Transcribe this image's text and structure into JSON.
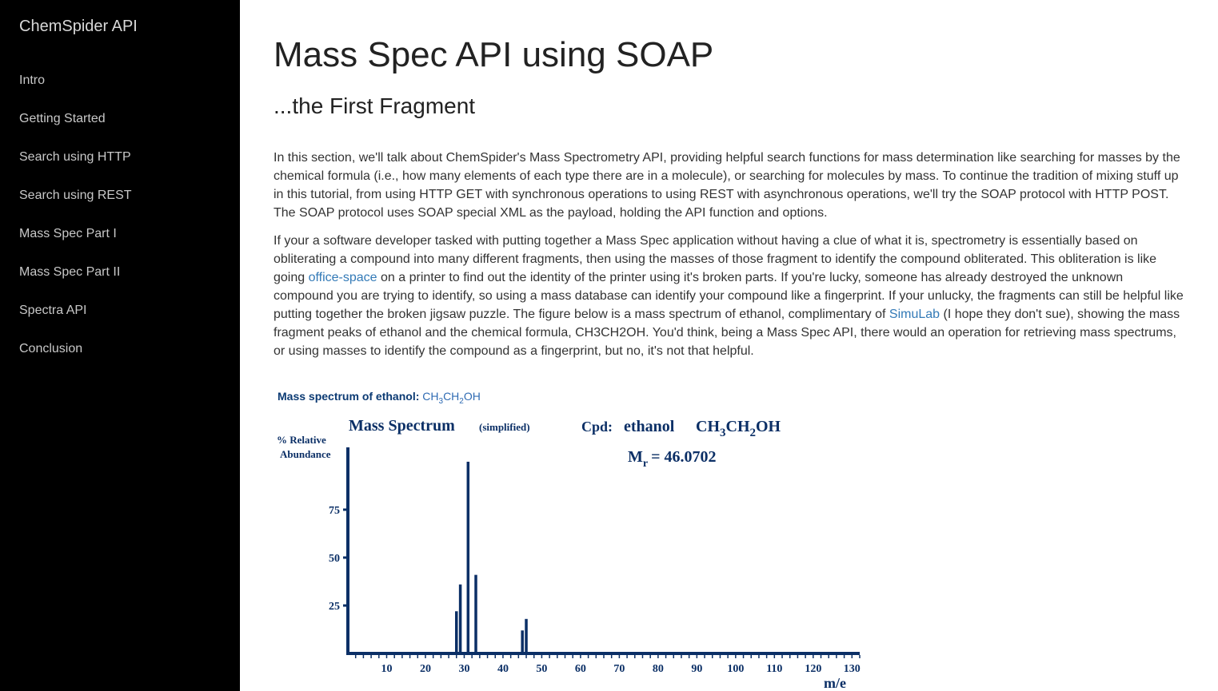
{
  "sidebar": {
    "brand": "ChemSpider API",
    "items": [
      {
        "label": "Intro"
      },
      {
        "label": "Getting Started"
      },
      {
        "label": "Search using HTTP"
      },
      {
        "label": "Search using REST"
      },
      {
        "label": "Mass Spec Part I"
      },
      {
        "label": "Mass Spec Part II"
      },
      {
        "label": "Spectra API"
      },
      {
        "label": "Conclusion"
      }
    ]
  },
  "main": {
    "title": "Mass Spec API using SOAP",
    "subtitle": "...the First Fragment",
    "paragraph1": "In this section, we'll talk about ChemSpider's Mass Spectrometry API, providing helpful search functions for mass determination like searching for masses by the chemical formula (i.e., how many elements of each type there are in a molecule), or searching for molecules by mass. To continue the tradition of mixing stuff up in this tutorial, from using HTTP GET with synchronous operations to using REST with asynchronous operations, we'll try the SOAP protocol with HTTP POST. The SOAP protocol uses SOAP special XML as the payload, holding the API function and options.",
    "paragraph2": {
      "part1": "If your a software developer tasked with putting together a Mass Spec application without having a clue of what it is, spectrometry is essentially based on obliterating a compound into many different fragments, then using the masses of those fragment to identify the compound obliterated. This obliteration is like going ",
      "link1": "office-space",
      "part2": " on a printer to find out the identity of the printer using it's broken parts. If you're lucky, someone has already destroyed the unknown compound you are trying to identify, so using a mass database can identify your compound like a fingerprint. If your unlucky, the fragments can still be helpful like putting together the broken jigsaw puzzle. The figure below is a mass spectrum of ethanol, complimentary of ",
      "link2": "SimuLab",
      "part3": " (I hope they don't sue), showing the mass fragment peaks of ethanol and the chemical formula, CH3CH2OH. You'd think, being a Mass Spec API, there would an operation for retrieving mass spectrums, or using masses to identify the compound as a fingerprint, but no, it's not that helpful."
    }
  },
  "figure": {
    "caption_label": "Mass spectrum of ethanol:",
    "caption_formula": {
      "a": "CH",
      "s1": "3",
      "b": "CH",
      "s2": "2",
      "c": "OH"
    },
    "chart_title": "Mass Spectrum",
    "chart_title_note": "(simplified)",
    "cpd_label": "Cpd:",
    "cpd_name": "ethanol",
    "cpd_formula": {
      "a": "CH",
      "s1": "3",
      "b": "CH",
      "s2": "2",
      "c": "OH"
    },
    "mr_label": "M",
    "mr_sub": "r",
    "mr_value": "= 46.0702",
    "ylabel_line1": "% Relative",
    "ylabel_line2": "Abundance",
    "xlabel": "m/e"
  },
  "chart_data": {
    "type": "bar",
    "title": "Mass Spectrum (simplified)",
    "xlabel": "m/e",
    "ylabel": "% Relative Abundance",
    "xlim": [
      0,
      132
    ],
    "ylim": [
      0,
      100
    ],
    "x_ticks": [
      10,
      20,
      30,
      40,
      50,
      60,
      70,
      80,
      90,
      100,
      110,
      120,
      130
    ],
    "y_ticks": [
      25,
      50,
      75
    ],
    "peaks": [
      {
        "x": 28,
        "y": 22
      },
      {
        "x": 29,
        "y": 36
      },
      {
        "x": 31,
        "y": 100
      },
      {
        "x": 33,
        "y": 41
      },
      {
        "x": 45,
        "y": 12
      },
      {
        "x": 46,
        "y": 18
      }
    ],
    "color": "#0b2f66"
  }
}
